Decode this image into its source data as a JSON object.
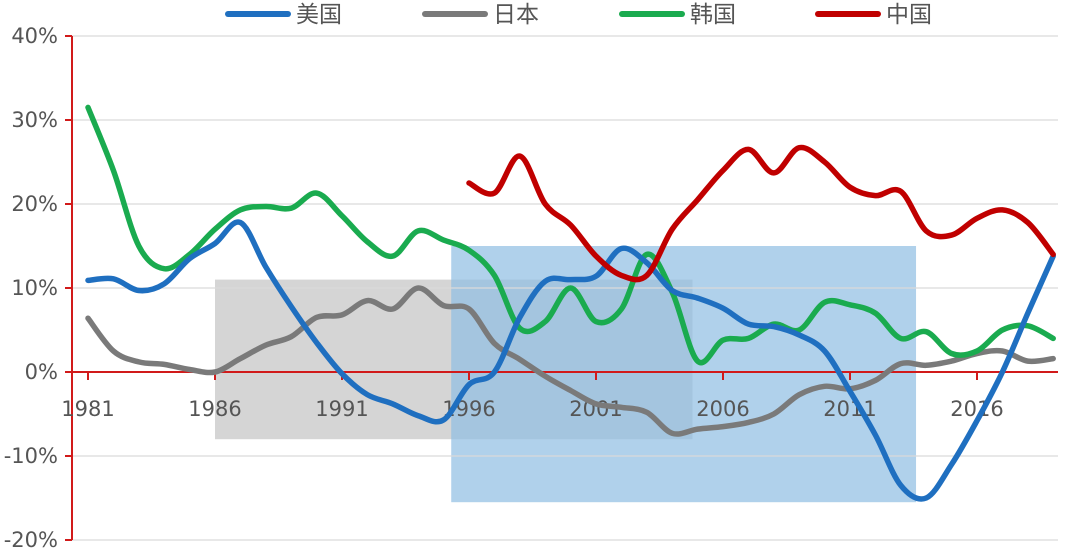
{
  "chart_data": {
    "type": "line",
    "title": "",
    "xlabel": "",
    "ylabel": "",
    "xlim": [
      1981,
      2019
    ],
    "ylim": [
      -0.2,
      0.4
    ],
    "grid": true,
    "legend_position": "top",
    "x_ticks": [
      "1981",
      "1986",
      "1991",
      "1996",
      "2001",
      "2006",
      "2011",
      "2016"
    ],
    "y_ticks": [
      "40%",
      "30%",
      "20%",
      "10%",
      "0%",
      "-10%",
      "-20%"
    ],
    "colors": {
      "axis": "#d11a1a",
      "grid": "#d9d9d9",
      "shade_gray": "#bfbfbf",
      "shade_blue": "#8fbde3"
    },
    "shaded_regions": [
      {
        "x_start": 1986,
        "x_end": 2004.8,
        "y_low": -0.08,
        "y_high": 0.11,
        "color": "#bfbfbf"
      },
      {
        "x_start": 1995.3,
        "x_end": 2013.6,
        "y_low": -0.155,
        "y_high": 0.15,
        "color": "#8fbde3"
      }
    ],
    "series": [
      {
        "name": "美国",
        "color": "#1f6fc0",
        "points": [
          [
            1981,
            0.109
          ],
          [
            1982,
            0.111
          ],
          [
            1983,
            0.097
          ],
          [
            1984,
            0.105
          ],
          [
            1985,
            0.135
          ],
          [
            1986,
            0.153
          ],
          [
            1987,
            0.178
          ],
          [
            1988,
            0.125
          ],
          [
            1989,
            0.078
          ],
          [
            1990,
            0.035
          ],
          [
            1991,
            -0.002
          ],
          [
            1992,
            -0.027
          ],
          [
            1993,
            -0.038
          ],
          [
            1994,
            -0.052
          ],
          [
            1995,
            -0.057
          ],
          [
            1996,
            -0.015
          ],
          [
            1997,
            0.0
          ],
          [
            1998,
            0.065
          ],
          [
            1999,
            0.108
          ],
          [
            2000,
            0.11
          ],
          [
            2001,
            0.114
          ],
          [
            2002,
            0.147
          ],
          [
            2003,
            0.13
          ],
          [
            2004,
            0.097
          ],
          [
            2005,
            0.088
          ],
          [
            2006,
            0.076
          ],
          [
            2007,
            0.057
          ],
          [
            2008,
            0.054
          ],
          [
            2009,
            0.044
          ],
          [
            2010,
            0.025
          ],
          [
            2011,
            -0.023
          ],
          [
            2012,
            -0.075
          ],
          [
            2013,
            -0.135
          ],
          [
            2014,
            -0.15
          ],
          [
            2015,
            -0.11
          ],
          [
            2016,
            -0.058
          ],
          [
            2017,
            0.0
          ],
          [
            2018,
            0.07
          ],
          [
            2019,
            0.138
          ]
        ]
      },
      {
        "name": "日本",
        "color": "#7a7a7a",
        "points": [
          [
            1981,
            0.064
          ],
          [
            1982,
            0.025
          ],
          [
            1983,
            0.012
          ],
          [
            1984,
            0.009
          ],
          [
            1985,
            0.003
          ],
          [
            1986,
            0.0
          ],
          [
            1987,
            0.016
          ],
          [
            1988,
            0.032
          ],
          [
            1989,
            0.042
          ],
          [
            1990,
            0.065
          ],
          [
            1991,
            0.068
          ],
          [
            1992,
            0.085
          ],
          [
            1993,
            0.075
          ],
          [
            1994,
            0.1
          ],
          [
            1995,
            0.079
          ],
          [
            1996,
            0.075
          ],
          [
            1997,
            0.034
          ],
          [
            1998,
            0.015
          ],
          [
            1999,
            -0.005
          ],
          [
            2000,
            -0.022
          ],
          [
            2001,
            -0.038
          ],
          [
            2002,
            -0.042
          ],
          [
            2003,
            -0.048
          ],
          [
            2004,
            -0.073
          ],
          [
            2005,
            -0.068
          ],
          [
            2006,
            -0.065
          ],
          [
            2007,
            -0.06
          ],
          [
            2008,
            -0.05
          ],
          [
            2009,
            -0.027
          ],
          [
            2010,
            -0.017
          ],
          [
            2011,
            -0.02
          ],
          [
            2012,
            -0.01
          ],
          [
            2013,
            0.01
          ],
          [
            2014,
            0.008
          ],
          [
            2015,
            0.013
          ],
          [
            2016,
            0.022
          ],
          [
            2017,
            0.025
          ],
          [
            2018,
            0.013
          ],
          [
            2019,
            0.016
          ]
        ]
      },
      {
        "name": "韩国",
        "color": "#1aab4f",
        "points": [
          [
            1981,
            0.315
          ],
          [
            1982,
            0.24
          ],
          [
            1983,
            0.15
          ],
          [
            1984,
            0.123
          ],
          [
            1985,
            0.14
          ],
          [
            1986,
            0.17
          ],
          [
            1987,
            0.193
          ],
          [
            1988,
            0.197
          ],
          [
            1989,
            0.195
          ],
          [
            1990,
            0.213
          ],
          [
            1991,
            0.186
          ],
          [
            1992,
            0.155
          ],
          [
            1993,
            0.138
          ],
          [
            1994,
            0.168
          ],
          [
            1995,
            0.157
          ],
          [
            1996,
            0.145
          ],
          [
            1997,
            0.115
          ],
          [
            1998,
            0.052
          ],
          [
            1999,
            0.06
          ],
          [
            2000,
            0.1
          ],
          [
            2001,
            0.06
          ],
          [
            2002,
            0.075
          ],
          [
            2003,
            0.14
          ],
          [
            2004,
            0.095
          ],
          [
            2005,
            0.013
          ],
          [
            2006,
            0.038
          ],
          [
            2007,
            0.04
          ],
          [
            2008,
            0.057
          ],
          [
            2009,
            0.05
          ],
          [
            2010,
            0.083
          ],
          [
            2011,
            0.08
          ],
          [
            2012,
            0.07
          ],
          [
            2013,
            0.04
          ],
          [
            2014,
            0.048
          ],
          [
            2015,
            0.022
          ],
          [
            2016,
            0.025
          ],
          [
            2017,
            0.05
          ],
          [
            2018,
            0.055
          ],
          [
            2019,
            0.04
          ]
        ]
      },
      {
        "name": "中国",
        "color": "#c00000",
        "points": [
          [
            1996,
            0.225
          ],
          [
            1997,
            0.213
          ],
          [
            1998,
            0.257
          ],
          [
            1999,
            0.2
          ],
          [
            2000,
            0.175
          ],
          [
            2001,
            0.138
          ],
          [
            2002,
            0.115
          ],
          [
            2003,
            0.115
          ],
          [
            2004,
            0.17
          ],
          [
            2005,
            0.205
          ],
          [
            2006,
            0.24
          ],
          [
            2007,
            0.265
          ],
          [
            2008,
            0.237
          ],
          [
            2009,
            0.267
          ],
          [
            2010,
            0.25
          ],
          [
            2011,
            0.22
          ],
          [
            2012,
            0.21
          ],
          [
            2013,
            0.215
          ],
          [
            2014,
            0.168
          ],
          [
            2015,
            0.163
          ],
          [
            2016,
            0.183
          ],
          [
            2017,
            0.193
          ],
          [
            2018,
            0.178
          ],
          [
            2019,
            0.14
          ]
        ]
      }
    ]
  }
}
